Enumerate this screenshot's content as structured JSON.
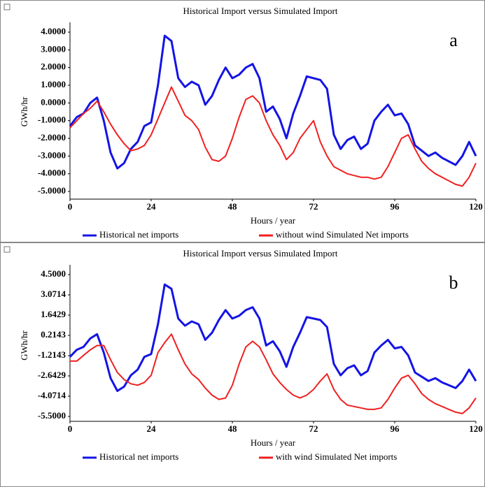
{
  "chart_data": [
    {
      "type": "line",
      "title": "Historical Import versus Simulated Import",
      "panel_label": "a",
      "x_label": "Hours / year",
      "y_label": "GWh/hr",
      "x": [
        0,
        2,
        4,
        6,
        8,
        10,
        12,
        14,
        16,
        18,
        20,
        22,
        24,
        26,
        28,
        30,
        32,
        34,
        36,
        38,
        40,
        42,
        44,
        46,
        48,
        50,
        52,
        54,
        56,
        58,
        60,
        62,
        64,
        66,
        68,
        70,
        72,
        74,
        76,
        78,
        80,
        82,
        84,
        86,
        88,
        90,
        92,
        94,
        96,
        98,
        100,
        102,
        104,
        106,
        108,
        110,
        112,
        114,
        116,
        118,
        120
      ],
      "xlim": [
        0,
        120
      ],
      "xticks": [
        0,
        24,
        48,
        72,
        96,
        120
      ],
      "ylim": [
        -5,
        4
      ],
      "yticks": [
        {
          "value": 4,
          "label": "4.0000"
        },
        {
          "value": 3,
          "label": "3.0000"
        },
        {
          "value": 2,
          "label": "2.0000"
        },
        {
          "value": 1,
          "label": "1.0000"
        },
        {
          "value": 0,
          "label": "0.0000"
        },
        {
          "value": -1,
          "label": "-1.0000"
        },
        {
          "value": -2,
          "label": "-2.0000"
        },
        {
          "value": -3,
          "label": "-3.0000"
        },
        {
          "value": -4,
          "label": "-4.0000"
        },
        {
          "value": -5,
          "label": "-5.0000"
        }
      ],
      "series": [
        {
          "name": "Historical net imports",
          "color": "#1414e6",
          "values": [
            -1.3,
            -0.8,
            -0.6,
            0.0,
            0.3,
            -1.0,
            -2.8,
            -3.7,
            -3.4,
            -2.6,
            -2.2,
            -1.3,
            -1.1,
            1.0,
            3.8,
            3.5,
            1.4,
            0.9,
            1.2,
            1.0,
            -0.1,
            0.4,
            1.3,
            2.0,
            1.4,
            1.6,
            2.0,
            2.2,
            1.4,
            -0.5,
            -0.2,
            -0.9,
            -2.0,
            -0.6,
            0.4,
            1.5,
            1.4,
            1.3,
            0.8,
            -1.8,
            -2.6,
            -2.1,
            -1.9,
            -2.6,
            -2.3,
            -1.0,
            -0.5,
            -0.1,
            -0.7,
            -0.6,
            -1.2,
            -2.4,
            -2.7,
            -3.0,
            -2.8,
            -3.1,
            -3.3,
            -3.5,
            -3.0,
            -2.2,
            -3.0
          ]
        },
        {
          "name": "without wind Simulated Net imports",
          "color": "#f02020",
          "values": [
            -1.4,
            -1.0,
            -0.6,
            -0.3,
            0.1,
            -0.5,
            -1.2,
            -1.8,
            -2.3,
            -2.7,
            -2.6,
            -2.4,
            -1.8,
            -0.9,
            0.0,
            0.9,
            0.1,
            -0.7,
            -1.0,
            -1.5,
            -2.5,
            -3.2,
            -3.3,
            -3.0,
            -2.0,
            -0.8,
            0.2,
            0.4,
            0.0,
            -1.0,
            -1.8,
            -2.4,
            -3.2,
            -2.8,
            -2.0,
            -1.5,
            -1.0,
            -2.2,
            -3.0,
            -3.6,
            -3.8,
            -4.0,
            -4.1,
            -4.2,
            -4.2,
            -4.3,
            -4.2,
            -3.6,
            -2.8,
            -2.0,
            -1.8,
            -2.6,
            -3.3,
            -3.7,
            -4.0,
            -4.2,
            -4.4,
            -4.6,
            -4.7,
            -4.2,
            -3.4
          ]
        }
      ]
    },
    {
      "type": "line",
      "title": "Historical Import versus Simulated Import",
      "panel_label": "b",
      "x_label": "Hours / year",
      "y_label": "GWh/hr",
      "x": [
        0,
        2,
        4,
        6,
        8,
        10,
        12,
        14,
        16,
        18,
        20,
        22,
        24,
        26,
        28,
        30,
        32,
        34,
        36,
        38,
        40,
        42,
        44,
        46,
        48,
        50,
        52,
        54,
        56,
        58,
        60,
        62,
        64,
        66,
        68,
        70,
        72,
        74,
        76,
        78,
        80,
        82,
        84,
        86,
        88,
        90,
        92,
        94,
        96,
        98,
        100,
        102,
        104,
        106,
        108,
        110,
        112,
        114,
        116,
        118,
        120
      ],
      "xlim": [
        0,
        120
      ],
      "xticks": [
        0,
        24,
        48,
        72,
        96,
        120
      ],
      "ylim": [
        -5.5,
        4.5
      ],
      "yticks": [
        {
          "value": 4.5,
          "label": "4.5000"
        },
        {
          "value": 3.0714,
          "label": "3.0714"
        },
        {
          "value": 1.6429,
          "label": "1.6429"
        },
        {
          "value": 0.2143,
          "label": "0.2143"
        },
        {
          "value": -1.2143,
          "label": "-1.2143"
        },
        {
          "value": -2.6429,
          "label": "-2.6429"
        },
        {
          "value": -4.0714,
          "label": "-4.0714"
        },
        {
          "value": -5.5,
          "label": "-5.5000"
        }
      ],
      "series": [
        {
          "name": "Historical net imports",
          "color": "#1414e6",
          "values": [
            -1.3,
            -0.8,
            -0.6,
            0.0,
            0.3,
            -1.0,
            -2.8,
            -3.7,
            -3.4,
            -2.6,
            -2.2,
            -1.3,
            -1.1,
            1.0,
            3.8,
            3.5,
            1.4,
            0.9,
            1.2,
            1.0,
            -0.1,
            0.4,
            1.3,
            2.0,
            1.4,
            1.6,
            2.0,
            2.2,
            1.4,
            -0.5,
            -0.2,
            -0.9,
            -2.0,
            -0.6,
            0.4,
            1.5,
            1.4,
            1.3,
            0.8,
            -1.8,
            -2.6,
            -2.1,
            -1.9,
            -2.6,
            -2.3,
            -1.0,
            -0.5,
            -0.1,
            -0.7,
            -0.6,
            -1.2,
            -2.4,
            -2.7,
            -3.0,
            -2.8,
            -3.1,
            -3.3,
            -3.5,
            -3.0,
            -2.2,
            -3.0
          ]
        },
        {
          "name": "with wind Simulated Net imports",
          "color": "#f02020",
          "values": [
            -1.6,
            -1.6,
            -1.2,
            -0.8,
            -0.5,
            -0.5,
            -1.5,
            -2.4,
            -2.9,
            -3.2,
            -3.3,
            -3.1,
            -2.6,
            -1.0,
            -0.3,
            0.3,
            -0.8,
            -1.8,
            -2.5,
            -2.9,
            -3.5,
            -4.0,
            -4.3,
            -4.2,
            -3.3,
            -1.8,
            -0.6,
            -0.2,
            -0.6,
            -1.5,
            -2.5,
            -3.1,
            -3.6,
            -4.0,
            -4.2,
            -4.0,
            -3.6,
            -3.0,
            -2.5,
            -3.6,
            -4.3,
            -4.7,
            -4.8,
            -4.9,
            -5.0,
            -5.0,
            -4.9,
            -4.3,
            -3.5,
            -2.8,
            -2.6,
            -3.2,
            -3.9,
            -4.3,
            -4.6,
            -4.8,
            -5.0,
            -5.2,
            -5.3,
            -4.9,
            -4.2
          ]
        }
      ]
    }
  ]
}
